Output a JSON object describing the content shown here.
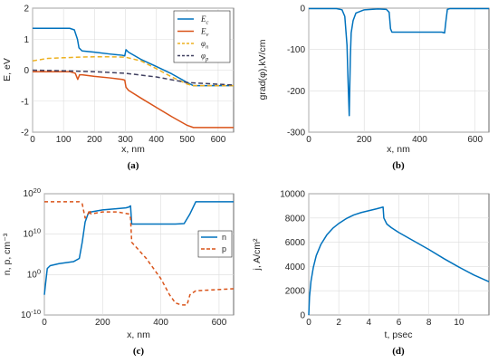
{
  "chart_data": [
    {
      "type": "line",
      "panel": "(a)",
      "xlabel": "x, nm",
      "ylabel": "E, eV",
      "xlim": [
        0,
        650
      ],
      "ylim": [
        -2,
        2
      ],
      "xticks": [
        0,
        100,
        200,
        300,
        400,
        500,
        600
      ],
      "yticks": [
        -2,
        -1,
        0,
        1,
        2
      ],
      "grid": true,
      "legend_position": "top-right",
      "series": [
        {
          "name": "E_c",
          "label_main": "E",
          "label_sub": "c",
          "color": "#0072BD",
          "dash": "solid",
          "x": [
            0,
            120,
            135,
            145,
            150,
            160,
            200,
            250,
            290,
            298,
            302,
            310,
            350,
            400,
            450,
            500,
            520,
            650
          ],
          "y": [
            1.35,
            1.35,
            1.3,
            1.0,
            0.72,
            0.62,
            0.58,
            0.52,
            0.48,
            0.46,
            0.66,
            0.58,
            0.35,
            0.12,
            -0.12,
            -0.4,
            -0.5,
            -0.5
          ]
        },
        {
          "name": "E_v",
          "label_main": "E",
          "label_sub": "v",
          "color": "#D95319",
          "dash": "solid",
          "x": [
            0,
            120,
            138,
            146,
            152,
            160,
            200,
            250,
            290,
            298,
            302,
            310,
            350,
            400,
            450,
            500,
            520,
            650
          ],
          "y": [
            -0.05,
            -0.05,
            -0.1,
            -0.3,
            -0.15,
            -0.15,
            -0.2,
            -0.25,
            -0.3,
            -0.32,
            -0.55,
            -0.65,
            -0.9,
            -1.2,
            -1.5,
            -1.78,
            -1.85,
            -1.85
          ]
        },
        {
          "name": "phi_n",
          "label_main": "φ",
          "label_sub": "n",
          "color": "#EDB120",
          "dash": "5,3",
          "x": [
            0,
            50,
            100,
            150,
            200,
            250,
            300,
            350,
            400,
            450,
            500,
            520,
            650
          ],
          "y": [
            0.3,
            0.38,
            0.4,
            0.42,
            0.43,
            0.43,
            0.42,
            0.3,
            0.05,
            -0.22,
            -0.45,
            -0.5,
            -0.5
          ]
        },
        {
          "name": "phi_p",
          "label_main": "φ",
          "label_sub": "p",
          "color": "#404060",
          "dash": "5,3",
          "x": [
            0,
            100,
            200,
            300,
            400,
            500,
            650
          ],
          "y": [
            0.0,
            -0.02,
            -0.05,
            -0.1,
            -0.22,
            -0.4,
            -0.48
          ]
        }
      ]
    },
    {
      "type": "line",
      "panel": "(b)",
      "xlabel": "x, nm",
      "ylabel": "grad(φ),kV/cm",
      "xlim": [
        0,
        650
      ],
      "ylim": [
        -300,
        0
      ],
      "xticks": [
        0,
        200,
        400,
        600
      ],
      "yticks": [
        -300,
        -200,
        -100,
        0
      ],
      "grid": true,
      "series": [
        {
          "name": "grad_phi",
          "color": "#0072BD",
          "dash": "solid",
          "x": [
            0,
            100,
            120,
            130,
            138,
            142,
            146,
            150,
            153,
            160,
            170,
            200,
            250,
            280,
            290,
            295,
            300,
            350,
            400,
            450,
            480,
            490,
            495,
            500,
            510,
            650
          ],
          "y": [
            -1,
            -1,
            -4,
            -20,
            -90,
            -180,
            -260,
            -120,
            -60,
            -30,
            -12,
            -4,
            -2,
            -3,
            -10,
            -50,
            -58,
            -58,
            -58,
            -58,
            -58,
            -60,
            -30,
            -3,
            -1,
            -1
          ]
        }
      ]
    },
    {
      "type": "line",
      "panel": "(c)",
      "xlabel": "x, nm",
      "ylabel": "n, p, cm⁻³",
      "yscale": "log",
      "xlim": [
        0,
        650
      ],
      "ylim_exp": [
        -10,
        20
      ],
      "xticks": [
        0,
        200,
        400,
        600
      ],
      "ytick_base": "10",
      "ytick_exps": [
        "-10",
        "0",
        "10",
        "20"
      ],
      "grid": true,
      "legend_position": "right",
      "series": [
        {
          "name": "n",
          "color": "#0072BD",
          "dash": "solid",
          "x": [
            0,
            3,
            10,
            20,
            50,
            100,
            120,
            130,
            136,
            140,
            145,
            150,
            160,
            200,
            250,
            280,
            290,
            296,
            300,
            350,
            400,
            450,
            480,
            500,
            520,
            650
          ],
          "log10y": [
            -5,
            -3,
            1.5,
            2.2,
            2.7,
            3.2,
            4,
            8,
            11,
            13,
            14,
            15,
            15.5,
            16,
            16.3,
            16.5,
            16.7,
            17,
            12.5,
            12.5,
            12.5,
            12.5,
            12.6,
            15,
            18,
            18
          ]
        },
        {
          "name": "p",
          "color": "#D95319",
          "dash": "4,3",
          "x": [
            0,
            100,
            120,
            130,
            140,
            150,
            155,
            160,
            200,
            250,
            290,
            296,
            300,
            350,
            400,
            430,
            450,
            470,
            490,
            500,
            520,
            650
          ],
          "log10y": [
            18,
            18,
            18,
            17.5,
            14,
            15,
            16,
            15,
            15.5,
            15.5,
            15,
            14,
            8,
            4,
            -1,
            -5,
            -7,
            -7.5,
            -7.5,
            -5,
            -4,
            -3.5
          ]
        }
      ]
    },
    {
      "type": "line",
      "panel": "(d)",
      "xlabel": "t, psec",
      "ylabel": "j, A/cm²",
      "xlim": [
        0,
        12
      ],
      "ylim": [
        0,
        10000
      ],
      "xticks": [
        0,
        2,
        4,
        6,
        8,
        10
      ],
      "yticks": [
        0,
        2000,
        4000,
        6000,
        8000,
        10000
      ],
      "grid": true,
      "series": [
        {
          "name": "j",
          "color": "#0072BD",
          "dash": "solid",
          "x": [
            0,
            0.05,
            0.15,
            0.3,
            0.5,
            0.8,
            1.2,
            1.6,
            2,
            2.5,
            3,
            3.5,
            4,
            4.5,
            4.95,
            5.0,
            5.2,
            5.5,
            6,
            7,
            8,
            9,
            10,
            11,
            12
          ],
          "y": [
            0,
            1500,
            2800,
            3900,
            4900,
            5800,
            6600,
            7150,
            7550,
            7950,
            8250,
            8450,
            8600,
            8750,
            8900,
            8000,
            7500,
            7200,
            6800,
            6100,
            5400,
            4650,
            3950,
            3300,
            2750
          ]
        }
      ]
    }
  ]
}
